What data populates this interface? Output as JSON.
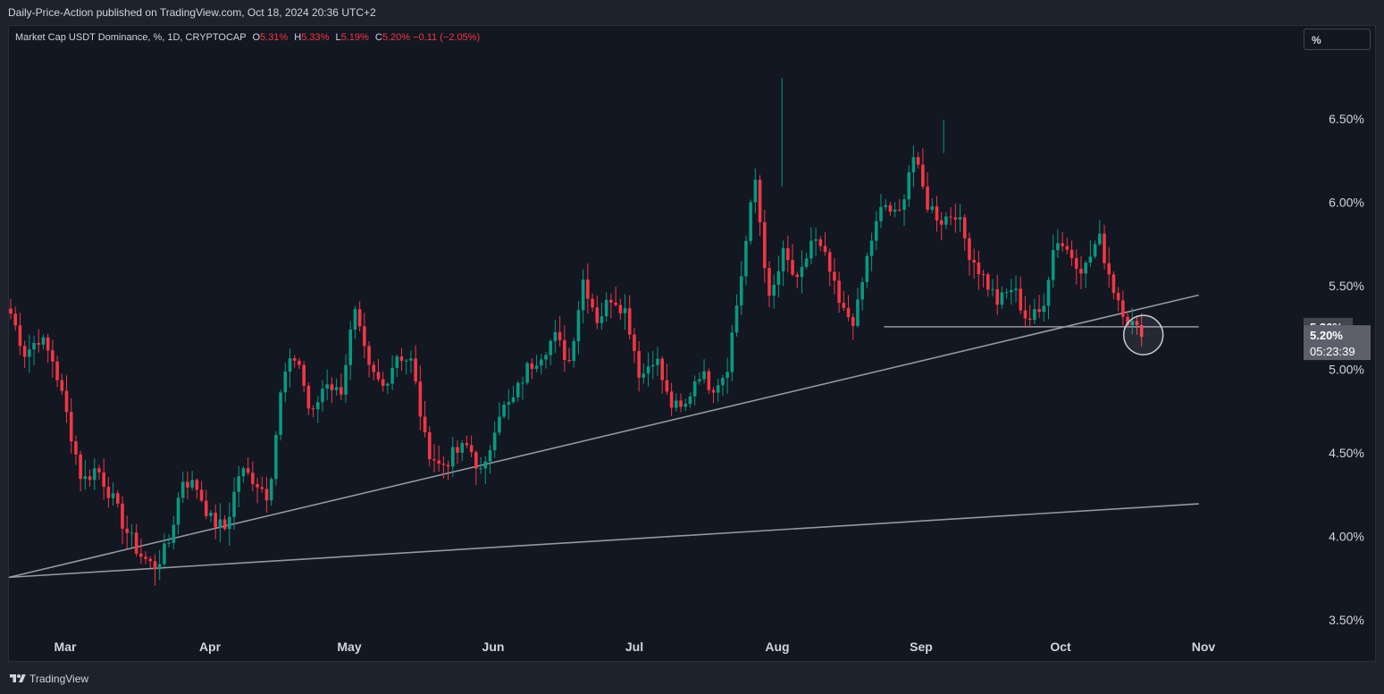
{
  "header": {
    "publisher_line": "Daily-Price-Action published on TradingView.com, Oct 18, 2024 20:36 UTC+2"
  },
  "legend": {
    "symbol": "Market Cap USDT Dominance, %, 1D, CRYPTOCAP",
    "o_label": "O",
    "o_value": "5.31%",
    "h_label": "H",
    "h_value": "5.33%",
    "l_label": "L",
    "l_value": "5.19%",
    "c_label": "C",
    "c_value": "5.20%",
    "change": "−0.11 (−2.05%)"
  },
  "scale_button": {
    "label": "%"
  },
  "footer": {
    "brand": "TradingView"
  },
  "colors": {
    "up": "#089981",
    "down": "#f23645",
    "background": "#131722",
    "text": "#d1d4dc",
    "trendline": "#9598a1"
  },
  "chart_data": {
    "type": "candlestick",
    "y_axis": {
      "ticks": [
        "3.50%",
        "4.00%",
        "4.50%",
        "5.00%",
        "5.50%",
        "6.00%",
        "6.50%"
      ],
      "range": [
        3.35,
        6.95
      ]
    },
    "x_axis": {
      "ticks": [
        "Mar",
        "Apr",
        "May",
        "Jun",
        "Jul",
        "Aug",
        "Sep",
        "Oct",
        "Nov"
      ]
    },
    "price_labels": {
      "open_level": "5.26%",
      "last_price": "5.20%",
      "countdown": "05:23:39"
    },
    "key_values": [
      5.34,
      5.1,
      5.2,
      5.05,
      4.7,
      4.33,
      4.42,
      4.25,
      4.05,
      3.9,
      3.82,
      3.95,
      4.35,
      4.3,
      4.1,
      4.05,
      4.4,
      4.35,
      4.25,
      4.95,
      5.1,
      4.7,
      4.95,
      4.85,
      5.35,
      5.0,
      4.9,
      5.1,
      5.05,
      4.55,
      4.42,
      4.5,
      4.55,
      4.35,
      4.75,
      4.8,
      5.0,
      5.1,
      5.2,
      5.05,
      5.55,
      5.3,
      5.45,
      5.35,
      4.95,
      5.1,
      4.8,
      4.75,
      5.0,
      4.9,
      5.0,
      5.55,
      6.15,
      5.4,
      5.7,
      5.5,
      5.8,
      5.65,
      5.35,
      5.3,
      5.75,
      6.0,
      5.9,
      6.3,
      6.0,
      5.9,
      5.95,
      5.7,
      5.55,
      5.4,
      5.5,
      5.3,
      5.35,
      5.8,
      5.7,
      5.6,
      5.8,
      5.5,
      5.31,
      5.2
    ],
    "trendlines": [
      {
        "name": "primary-support",
        "start": {
          "date": "Feb 8",
          "value": 3.76
        },
        "end": {
          "date": "Oct 30",
          "value": 5.45
        }
      },
      {
        "name": "long-support",
        "start": {
          "date": "Feb 8",
          "value": 3.76
        },
        "end": {
          "date": "Oct 30",
          "value": 4.2
        }
      },
      {
        "name": "horizontal-level",
        "start": {
          "date": "Aug 24",
          "value": 5.26
        },
        "end": {
          "date": "Oct 30",
          "value": 5.26
        }
      }
    ],
    "highlight": {
      "date": "Oct 18",
      "value": 5.2
    }
  }
}
